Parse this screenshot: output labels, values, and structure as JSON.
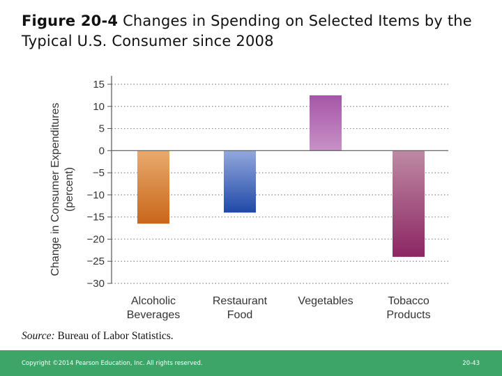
{
  "slide": {
    "title_bold": "Figure 20-4",
    "title_rest": " Changes in Spending on Selected Items by the Typical U.S. Consumer since 2008",
    "source_lead": "Source:",
    "source_text": " Bureau of Labor Statistics.",
    "copyright": "Copyright ©2014 Pearson Education, Inc. All rights reserved.",
    "page_number": "20-43"
  },
  "colors": {
    "footer": "#3ea568",
    "grid": "#888888",
    "axis": "#555555",
    "text": "#333333"
  },
  "chart_data": {
    "type": "bar",
    "title": "",
    "ylabel_line1": "Change in Consumer Expenditures",
    "ylabel_line2": "(percent)",
    "xlabel": "",
    "ylim": [
      -30,
      15
    ],
    "yticks": [
      15,
      10,
      5,
      0,
      -5,
      -10,
      -15,
      -20,
      -25,
      -30
    ],
    "ytick_labels": [
      "15",
      "10",
      "5",
      "0",
      "−5",
      "−10",
      "−15",
      "−20",
      "−25",
      "−30"
    ],
    "grid": true,
    "categories": [
      {
        "line1": "Alcoholic",
        "line2": "Beverages"
      },
      {
        "line1": "Restaurant",
        "line2": "Food"
      },
      {
        "line1": "Vegetables",
        "line2": ""
      },
      {
        "line1": "Tobacco",
        "line2": "Products"
      }
    ],
    "values": [
      -16.5,
      -14,
      12.5,
      -24
    ],
    "bar_colors": [
      [
        "#e9aa6e",
        "#c9661a"
      ],
      [
        "#93a8dc",
        "#1f49a8"
      ],
      [
        "#a656a8",
        "#c791c6"
      ],
      [
        "#be8aa4",
        "#8c2663"
      ]
    ]
  }
}
